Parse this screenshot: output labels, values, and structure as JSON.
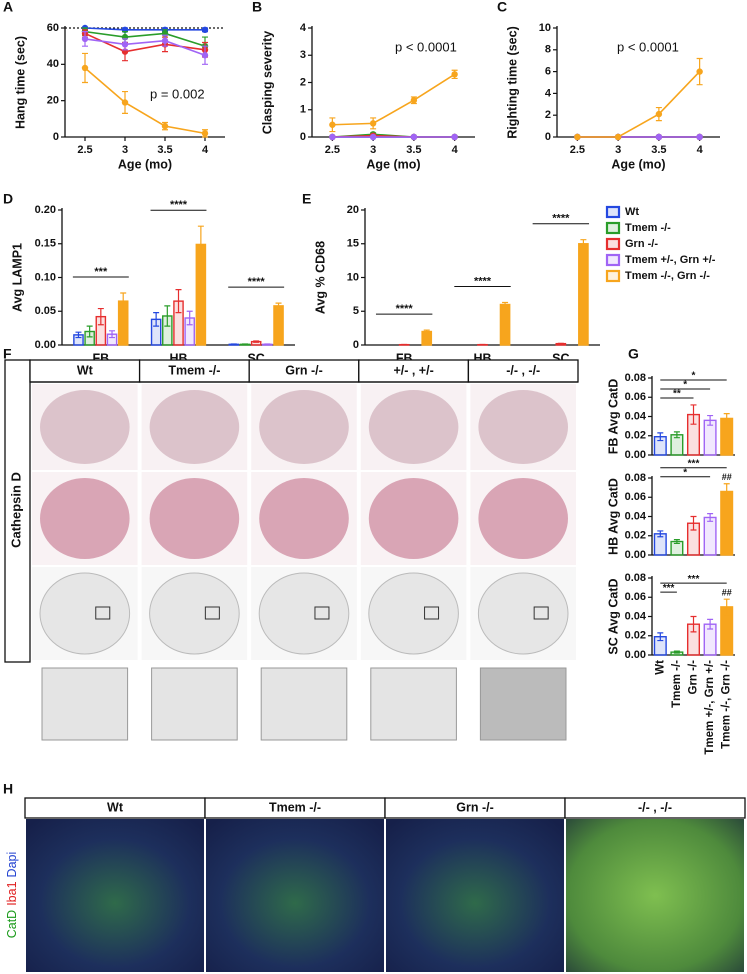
{
  "chart_data": [
    {
      "type": "line",
      "panel": "A",
      "y_label": "Hang time (sec)",
      "x_label": "Age (mo)",
      "annotation": "p = 0.002",
      "x": [
        2.5,
        3,
        3.5,
        4
      ],
      "xlim": [
        2.25,
        4.25
      ],
      "xticks": [
        2.5,
        3,
        3.5,
        4
      ],
      "ylim": [
        0,
        60
      ],
      "yticks": [
        0,
        20,
        40,
        60
      ],
      "reference_line": 60,
      "series": [
        {
          "color": "#2448e0",
          "values": [
            60,
            59,
            59,
            59
          ],
          "errors": [
            0.5,
            1,
            1,
            1
          ]
        },
        {
          "color": "#2a9d2a",
          "values": [
            58,
            55,
            57,
            50
          ],
          "errors": [
            2,
            3,
            2,
            5
          ]
        },
        {
          "color": "#e62e2e",
          "values": [
            57,
            47,
            51,
            48
          ],
          "errors": [
            2,
            5,
            4,
            4
          ]
        },
        {
          "color": "#a064f5",
          "values": [
            54,
            51,
            53,
            45
          ],
          "errors": [
            4,
            3,
            3,
            5
          ]
        },
        {
          "color": "#f7a51d",
          "values": [
            38,
            19,
            6,
            2
          ],
          "errors": [
            8,
            6,
            2,
            2
          ]
        }
      ]
    },
    {
      "type": "line",
      "panel": "B",
      "y_label": "Clasping severity",
      "x_label": "Age (mo)",
      "annotation": "p < 0.0001",
      "x": [
        2.5,
        3,
        3.5,
        4
      ],
      "xlim": [
        2.25,
        4.25
      ],
      "xticks": [
        2.5,
        3,
        3.5,
        4
      ],
      "ylim": [
        0,
        4
      ],
      "yticks": [
        0,
        1,
        2,
        3,
        4
      ],
      "series": [
        {
          "color": "#2448e0",
          "values": [
            0,
            0,
            0,
            0
          ],
          "errors": [
            0,
            0,
            0,
            0
          ]
        },
        {
          "color": "#2a9d2a",
          "values": [
            0,
            0.1,
            0,
            0
          ],
          "errors": [
            0,
            0.05,
            0,
            0
          ]
        },
        {
          "color": "#e62e2e",
          "values": [
            0,
            0.05,
            0,
            0
          ],
          "errors": [
            0,
            0.05,
            0,
            0
          ]
        },
        {
          "color": "#a064f5",
          "values": [
            0,
            0,
            0,
            0
          ],
          "errors": [
            0,
            0,
            0,
            0
          ]
        },
        {
          "color": "#f7a51d",
          "values": [
            0.45,
            0.5,
            1.35,
            2.3
          ],
          "errors": [
            0.25,
            0.2,
            0.12,
            0.15
          ]
        }
      ]
    },
    {
      "type": "line",
      "panel": "C",
      "y_label": "Righting time (sec)",
      "x_label": "Age (mo)",
      "annotation": "p < 0.0001",
      "x": [
        2.5,
        3,
        3.5,
        4
      ],
      "xlim": [
        2.25,
        4.25
      ],
      "xticks": [
        2.5,
        3,
        3.5,
        4
      ],
      "ylim": [
        0,
        10
      ],
      "yticks": [
        0,
        2,
        4,
        6,
        8,
        10
      ],
      "series": [
        {
          "color": "#2448e0",
          "values": [
            0,
            0,
            0,
            0
          ],
          "errors": [
            0,
            0,
            0,
            0
          ]
        },
        {
          "color": "#2a9d2a",
          "values": [
            0,
            0,
            0,
            0
          ],
          "errors": [
            0,
            0,
            0,
            0
          ]
        },
        {
          "color": "#e62e2e",
          "values": [
            0,
            0,
            0,
            0
          ],
          "errors": [
            0,
            0,
            0,
            0
          ]
        },
        {
          "color": "#a064f5",
          "values": [
            0,
            0,
            0,
            0
          ],
          "errors": [
            0,
            0,
            0,
            0
          ]
        },
        {
          "color": "#f7a51d",
          "values": [
            0,
            0,
            2.1,
            6
          ],
          "errors": [
            0,
            0,
            0.6,
            1.2
          ]
        }
      ]
    },
    {
      "type": "grouped_bar",
      "panel": "D",
      "y_label": "Avg LAMP1",
      "categories": [
        "FB",
        "HB",
        "SC"
      ],
      "ylim": [
        0,
        0.2
      ],
      "yticks": [
        {
          "value": 0,
          "label": "0.00"
        },
        {
          "value": 0.05,
          "label": "0.05"
        },
        {
          "value": 0.1,
          "label": "0.10"
        },
        {
          "value": 0.15,
          "label": "0.15"
        },
        {
          "value": 0.2,
          "label": "0.20"
        }
      ],
      "significance": [
        "***",
        "****",
        "****"
      ],
      "series": [
        {
          "name": "Wt",
          "color": "#2448e0",
          "values": [
            0.015,
            0.038,
            0.001
          ],
          "errors": [
            0.004,
            0.01,
            0.0005
          ]
        },
        {
          "name": "Tmem -/-",
          "color": "#2a9d2a",
          "values": [
            0.02,
            0.043,
            0.001
          ],
          "errors": [
            0.008,
            0.015,
            0.0005
          ]
        },
        {
          "name": "Grn -/-",
          "color": "#e62e2e",
          "values": [
            0.042,
            0.065,
            0.005
          ],
          "errors": [
            0.012,
            0.017,
            0.001
          ]
        },
        {
          "name": "Tmem +/-, Grn +/-",
          "color": "#a064f5",
          "values": [
            0.016,
            0.04,
            0.001
          ],
          "errors": [
            0.005,
            0.01,
            0.0005
          ]
        },
        {
          "name": "Tmem -/-, Grn -/-",
          "color": "#f7a51d",
          "values": [
            0.065,
            0.149,
            0.058
          ],
          "errors": [
            0.012,
            0.027,
            0.004
          ]
        }
      ]
    },
    {
      "type": "grouped_bar",
      "panel": "E",
      "y_label": "Avg % CD68",
      "categories": [
        "FB",
        "HB",
        "SC"
      ],
      "ylim": [
        0,
        20
      ],
      "yticks": [
        0,
        5,
        10,
        15,
        20
      ],
      "significance": [
        "****",
        "****",
        "****"
      ],
      "series": [
        {
          "color": "#2448e0",
          "values": [
            0,
            0,
            0
          ],
          "errors": [
            0,
            0,
            0
          ]
        },
        {
          "color": "#2a9d2a",
          "values": [
            0,
            0,
            0
          ],
          "errors": [
            0,
            0,
            0
          ]
        },
        {
          "color": "#e62e2e",
          "values": [
            0.05,
            0.05,
            0.2
          ],
          "errors": [
            0.02,
            0.02,
            0.05
          ]
        },
        {
          "color": "#a064f5",
          "values": [
            0,
            0,
            0
          ],
          "errors": [
            0,
            0,
            0
          ]
        },
        {
          "color": "#f7a51d",
          "values": [
            2,
            6,
            15
          ],
          "errors": [
            0.2,
            0.3,
            0.6
          ]
        }
      ]
    },
    {
      "type": "bar",
      "panel": "G",
      "y_label": "FB Avg CatD",
      "ylim": [
        0,
        0.08
      ],
      "yticks": [
        {
          "value": 0,
          "label": "0.00"
        },
        {
          "value": 0.02,
          "label": "0.02"
        },
        {
          "value": 0.04,
          "label": "0.04"
        },
        {
          "value": 0.06,
          "label": "0.06"
        },
        {
          "value": 0.08,
          "label": "0.08"
        }
      ],
      "colors": [
        "#2448e0",
        "#2a9d2a",
        "#e62e2e",
        "#a064f5",
        "#f7a51d"
      ],
      "values": [
        0.019,
        0.021,
        0.042,
        0.036,
        0.038
      ],
      "errors": [
        0.004,
        0.003,
        0.01,
        0.005,
        0.005
      ],
      "significance": [
        null,
        null,
        "**",
        "*",
        "*"
      ],
      "hash_marks": [
        null,
        null,
        null,
        null,
        null
      ]
    },
    {
      "type": "bar",
      "y_label": "HB Avg CatD",
      "ylim": [
        0,
        0.08
      ],
      "yticks": [
        {
          "value": 0,
          "label": "0.00"
        },
        {
          "value": 0.02,
          "label": "0.02"
        },
        {
          "value": 0.04,
          "label": "0.04"
        },
        {
          "value": 0.06,
          "label": "0.06"
        },
        {
          "value": 0.08,
          "label": "0.08"
        }
      ],
      "colors": [
        "#2448e0",
        "#2a9d2a",
        "#e62e2e",
        "#a064f5",
        "#f7a51d"
      ],
      "values": [
        0.022,
        0.014,
        0.033,
        0.039,
        0.066
      ],
      "errors": [
        0.003,
        0.002,
        0.007,
        0.004,
        0.008
      ],
      "significance": [
        null,
        null,
        null,
        "*",
        "***"
      ],
      "hash_marks": [
        null,
        null,
        null,
        null,
        "##"
      ]
    },
    {
      "type": "bar",
      "y_label": "SC Avg CatD",
      "ylim": [
        0,
        0.08
      ],
      "yticks": [
        {
          "value": 0,
          "label": "0.00"
        },
        {
          "value": 0.02,
          "label": "0.02"
        },
        {
          "value": 0.04,
          "label": "0.04"
        },
        {
          "value": 0.06,
          "label": "0.06"
        },
        {
          "value": 0.08,
          "label": "0.08"
        }
      ],
      "colors": [
        "#2448e0",
        "#2a9d2a",
        "#e62e2e",
        "#a064f5",
        "#f7a51d"
      ],
      "categories": [
        "Wt",
        "Tmem -/-",
        "Grn -/-",
        "Tmem +/-, Grn +/-",
        "Tmem -/-, Grn -/-"
      ],
      "values": [
        0.019,
        0.003,
        0.032,
        0.032,
        0.05
      ],
      "errors": [
        0.004,
        0.001,
        0.008,
        0.005,
        0.008
      ],
      "significance": [
        null,
        "***",
        null,
        null,
        "***"
      ],
      "hash_marks": [
        null,
        null,
        null,
        null,
        "##"
      ]
    }
  ],
  "figure_F": {
    "panel": "F",
    "row_label": "Cathepsin D",
    "columns": [
      "Wt",
      "Tmem -/-",
      "Grn -/-",
      "+/- , +/-",
      "-/- , -/-"
    ]
  },
  "figure_H": {
    "panel": "H",
    "columns": [
      "Wt",
      "Tmem -/-",
      "Grn -/-",
      "-/- , -/-"
    ],
    "stain_labels": [
      "CatD",
      "Iba1",
      "Dapi"
    ],
    "stain_colors": [
      "#1a9a1a",
      "#e02020",
      "#2040d0"
    ]
  }
}
